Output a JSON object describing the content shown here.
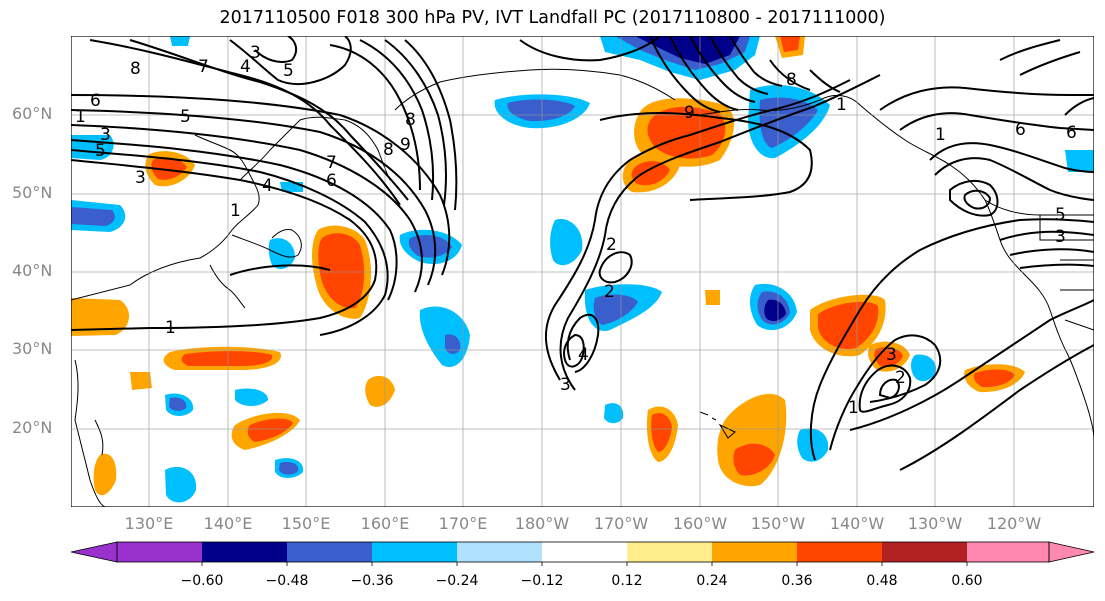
{
  "title": "2017110500 F018 300 hPa PV, IVT Landfall PC (2017110800 - 2017111000)",
  "lat_labels": [
    "60°N",
    "50°N",
    "40°N",
    "30°N",
    "20°N"
  ],
  "lon_labels": [
    "130°E",
    "140°E",
    "150°E",
    "160°E",
    "170°E",
    "180°W",
    "170°W",
    "160°W",
    "150°W",
    "140°W",
    "130°W",
    "120°W"
  ],
  "colorbar": {
    "colors": [
      "#9932CC",
      "#00008B",
      "#3A5FCD",
      "#00BFFF",
      "#B0E2FF",
      "#FFFFFF",
      "#FFEC8B",
      "#FFA500",
      "#FF4500",
      "#B22222",
      "#FF88B0"
    ],
    "ticks": [
      "−0.60",
      "−0.48",
      "−0.36",
      "−0.24",
      "−0.12",
      "0.12",
      "0.24",
      "0.36",
      "0.48",
      "0.60"
    ]
  },
  "contour_labels": [
    "8",
    "7",
    "6",
    "5",
    "4",
    "3",
    "2",
    "1",
    "3",
    "4",
    "5",
    "6",
    "7",
    "8",
    "9",
    "8",
    "7",
    "6",
    "5",
    "4",
    "3",
    "2",
    "1",
    "3",
    "4",
    "2",
    "1",
    "3",
    "2",
    "1",
    "5",
    "4",
    "3",
    "6",
    "1",
    "2",
    "3",
    "4",
    "5"
  ]
}
